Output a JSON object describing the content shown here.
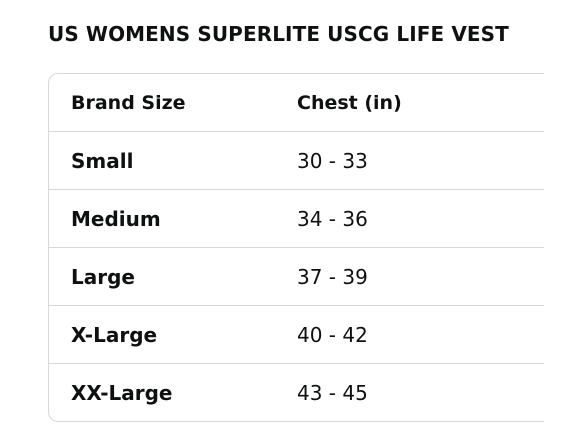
{
  "title": "US WOMENS SUPERLITE USCG LIFE VEST",
  "table": {
    "headers": [
      "Brand Size",
      "Chest (in)"
    ],
    "rows": [
      [
        "Small",
        "30 - 33"
      ],
      [
        "Medium",
        "34 - 36"
      ],
      [
        "Large",
        "37 - 39"
      ],
      [
        "X-Large",
        "40 - 42"
      ],
      [
        "XX-Large",
        "43 - 45"
      ]
    ]
  }
}
